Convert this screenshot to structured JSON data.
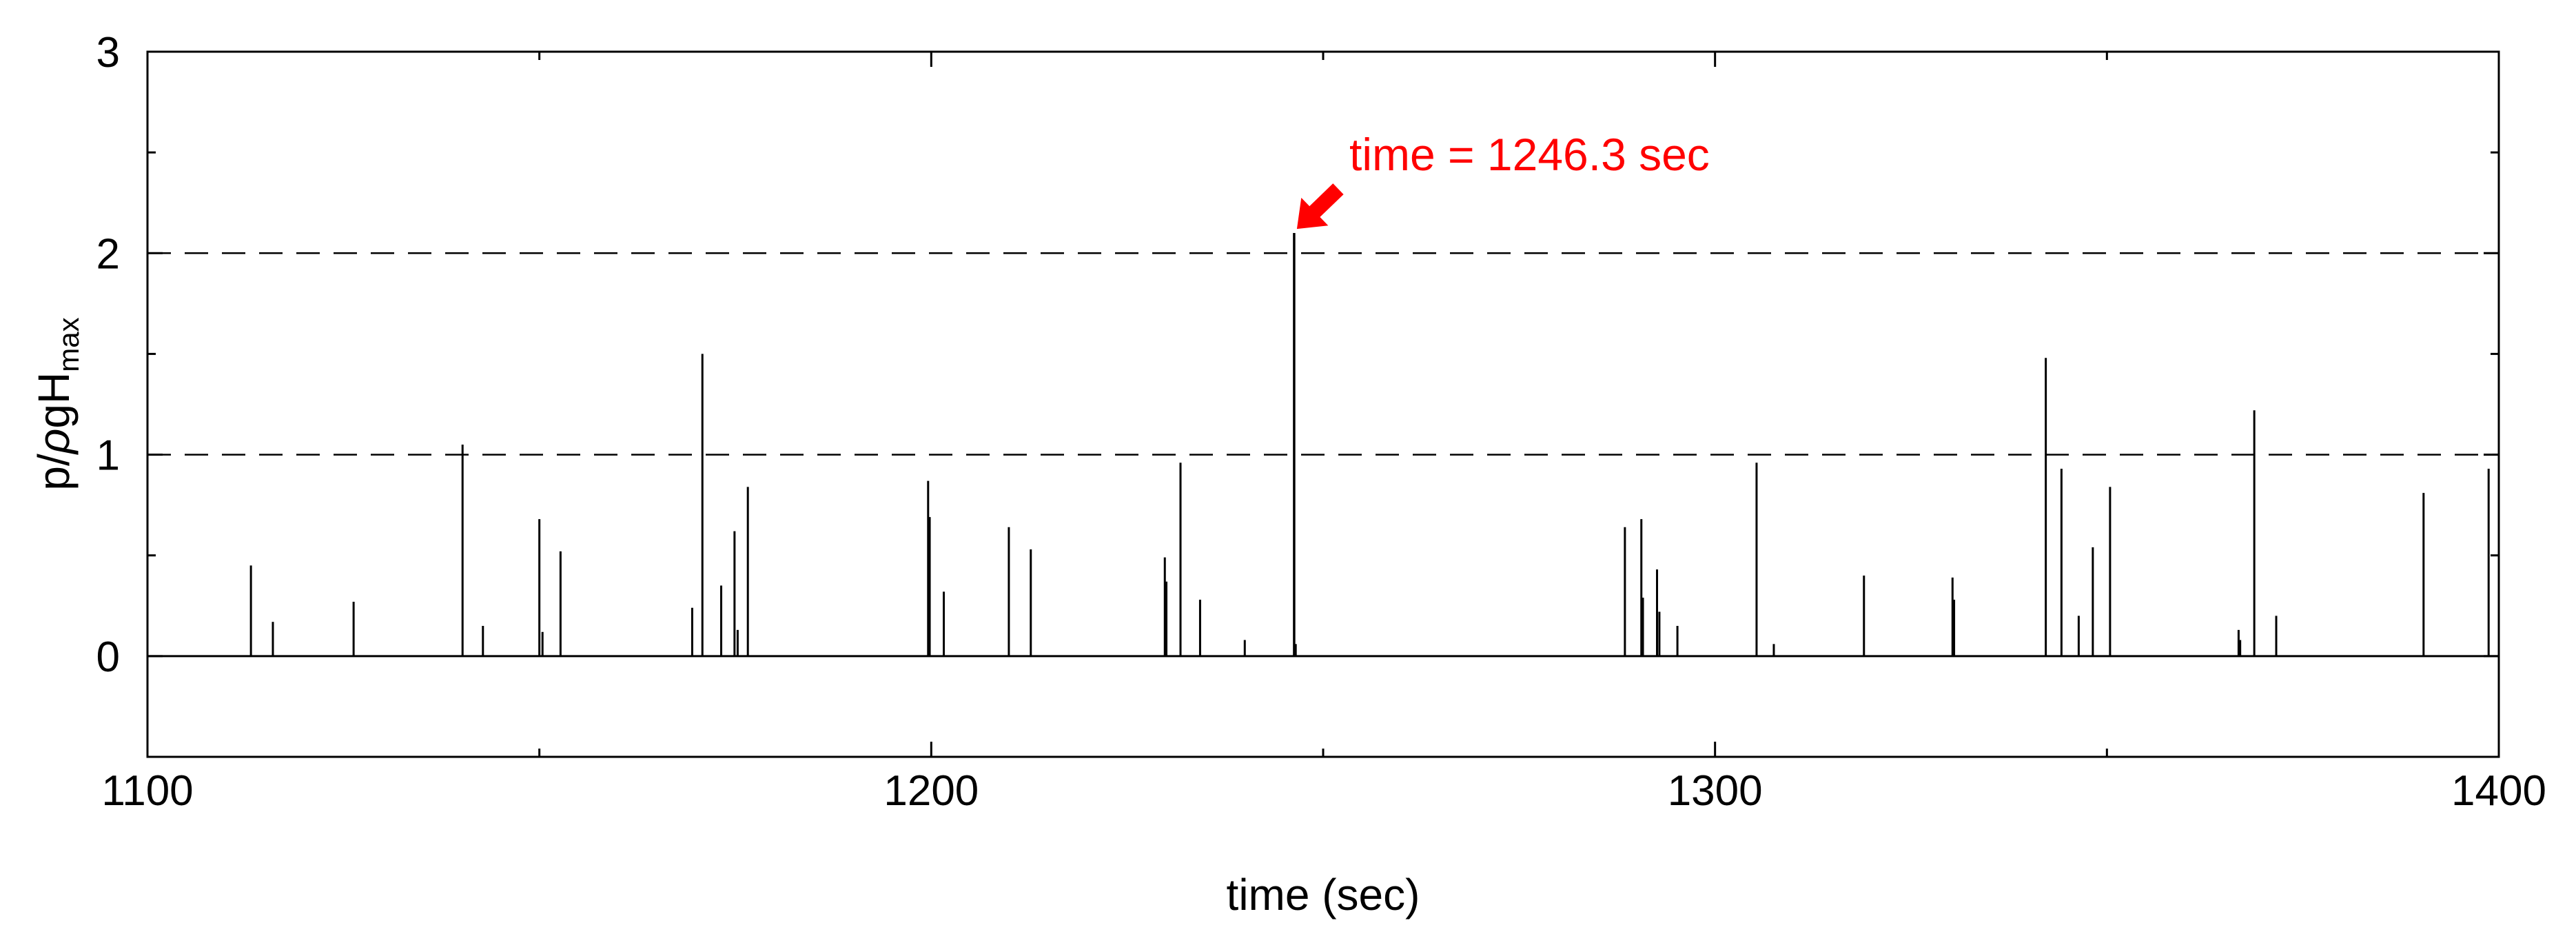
{
  "chart_data": {
    "type": "bar",
    "title": "",
    "xlabel": "time (sec)",
    "ylabel_parts": {
      "p": "p/",
      "rho": "ρ",
      "g": "gH",
      "sub": "max"
    },
    "xlim": [
      1100,
      1400
    ],
    "ylim": [
      -0.5,
      3
    ],
    "x_ticks": [
      1100,
      1200,
      1300,
      1400
    ],
    "x_tick_labels": [
      "1100",
      "1200",
      "1300",
      "1400"
    ],
    "y_ticks": [
      0,
      1,
      2,
      3
    ],
    "y_tick_labels": [
      "0",
      "1",
      "2",
      "3"
    ],
    "reference_lines": [
      1,
      2
    ],
    "grid": false,
    "annotation": {
      "text": "time = 1246.3 sec",
      "x": 1246.3,
      "y": 2.1,
      "color": "#ff0000"
    },
    "series": [
      {
        "x": [
          1113.2,
          1116.0,
          1126.3,
          1140.2,
          1142.8,
          1150.0,
          1150.4,
          1152.7,
          1169.5,
          1170.8,
          1173.2,
          1174.9,
          1175.3,
          1176.6,
          1199.6,
          1199.8,
          1201.6,
          1209.9,
          1212.7,
          1229.8,
          1230.0,
          1231.8,
          1234.3,
          1240.0,
          1246.3,
          1246.5,
          1288.5,
          1290.6,
          1290.8,
          1292.6,
          1292.9,
          1295.2,
          1305.3,
          1307.5,
          1319.0,
          1330.3,
          1330.5,
          1342.2,
          1344.2,
          1346.4,
          1348.2,
          1350.4,
          1366.8,
          1367.0,
          1368.8,
          1371.6,
          1390.4,
          1398.7
        ],
        "values": [
          0.45,
          0.17,
          0.27,
          1.05,
          0.15,
          0.68,
          0.12,
          0.52,
          0.24,
          1.5,
          0.35,
          0.62,
          0.13,
          0.84,
          0.87,
          0.69,
          0.32,
          0.64,
          0.53,
          0.49,
          0.37,
          0.96,
          0.28,
          0.08,
          2.1,
          0.06,
          0.64,
          0.68,
          0.29,
          0.43,
          0.22,
          0.15,
          0.96,
          0.06,
          0.4,
          0.39,
          0.28,
          1.48,
          0.93,
          0.2,
          0.54,
          0.84,
          0.13,
          0.08,
          1.22,
          0.2,
          0.81,
          0.93
        ],
        "color": "#000000"
      }
    ]
  }
}
